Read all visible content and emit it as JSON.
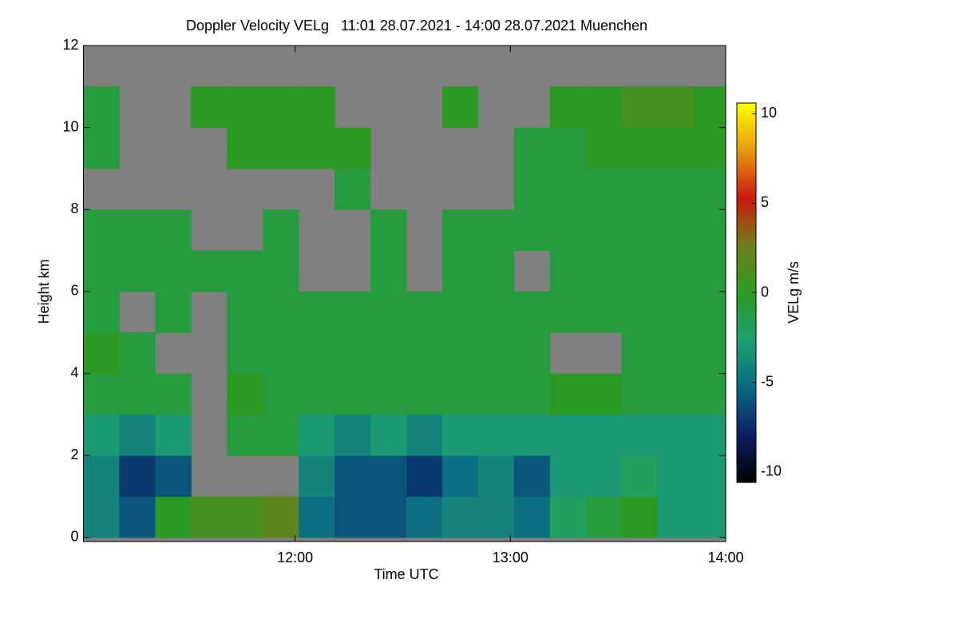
{
  "chart_data": {
    "type": "heatmap",
    "title": "Doppler Velocity VELg   11:01 28.07.2021 - 14:00 28.07.2021 Muenchen",
    "xlabel": "Time UTC",
    "ylabel": "Height km",
    "colorbar_label": "VELg m/s",
    "xlim": [
      "11:01",
      "14:00"
    ],
    "xticks": [
      "12:00",
      "13:00",
      "14:00"
    ],
    "ylim": [
      -0.1,
      12
    ],
    "yticks": [
      0,
      2,
      4,
      6,
      8,
      10,
      12
    ],
    "clim": [
      -10.6,
      10.6
    ],
    "cticks": [
      -10,
      -5,
      0,
      5,
      10
    ],
    "colors": [
      "#000000",
      "#0c1f66",
      "#0a6a84",
      "#1ea070",
      "#2c9a22",
      "#6e7e1c",
      "#cc1a10",
      "#e69a10",
      "#ffff00"
    ],
    "missing_color": "#808080",
    "x_bins": [
      "11:01",
      "11:11",
      "11:21",
      "11:31",
      "11:41",
      "11:51",
      "12:01",
      "12:11",
      "12:21",
      "12:31",
      "12:41",
      "12:51",
      "13:01",
      "13:11",
      "13:21",
      "13:31",
      "13:41",
      "13:51",
      "14:00"
    ],
    "y_bins": [
      0,
      1,
      2,
      3,
      4,
      5,
      6,
      7,
      8,
      9,
      10,
      11,
      12
    ],
    "values": [
      [
        -4,
        -6,
        0,
        1,
        1,
        2,
        -5,
        -6,
        -6,
        -5,
        -4,
        -4,
        -5,
        -2,
        -1,
        0,
        -3,
        -3
      ],
      [
        -4,
        -7,
        -6,
        null,
        null,
        null,
        -4,
        -6,
        -6,
        -7,
        -5,
        -4,
        -6,
        -3,
        -3,
        -2,
        -3,
        -3
      ],
      [
        -3,
        -4,
        -3,
        null,
        -1,
        -1,
        -3,
        -4,
        -3,
        -4,
        -3,
        -3,
        -3,
        -3,
        -3,
        -3,
        -3,
        -3
      ],
      [
        -1,
        -1,
        -1,
        null,
        0,
        -1,
        -1,
        -1,
        -1,
        -1,
        -1,
        -1,
        -1,
        0,
        0,
        -1,
        -1,
        -1
      ],
      [
        0,
        -1,
        null,
        null,
        -1,
        -1,
        -1,
        -1,
        -1,
        -1,
        -1,
        -1,
        -1,
        null,
        null,
        -1,
        -1,
        -1
      ],
      [
        -1,
        null,
        -1,
        null,
        -1,
        -1,
        -1,
        -1,
        -1,
        -1,
        -1,
        -1,
        -1,
        -1,
        -1,
        -1,
        -1,
        -1
      ],
      [
        -1,
        -1,
        -1,
        -1,
        -1,
        -1,
        null,
        null,
        -1,
        null,
        -1,
        -1,
        null,
        -1,
        -1,
        -1,
        -1,
        -1
      ],
      [
        -1,
        -1,
        -1,
        null,
        null,
        -1,
        null,
        null,
        -1,
        null,
        -1,
        -1,
        -1,
        -1,
        -1,
        -1,
        -1,
        -1
      ],
      [
        null,
        null,
        null,
        null,
        null,
        null,
        null,
        -1,
        null,
        null,
        null,
        null,
        -1,
        -1,
        -1,
        -1,
        -1,
        -1
      ],
      [
        -1,
        null,
        null,
        null,
        0,
        0,
        0,
        0,
        null,
        null,
        null,
        null,
        -1,
        -1,
        0,
        0,
        0,
        0
      ],
      [
        -1,
        null,
        null,
        0,
        0,
        0,
        0,
        null,
        null,
        null,
        0,
        null,
        null,
        0,
        0,
        1,
        1,
        0
      ],
      [
        null,
        null,
        null,
        null,
        null,
        null,
        null,
        null,
        null,
        null,
        null,
        null,
        null,
        null,
        null,
        null,
        null,
        null
      ]
    ]
  }
}
